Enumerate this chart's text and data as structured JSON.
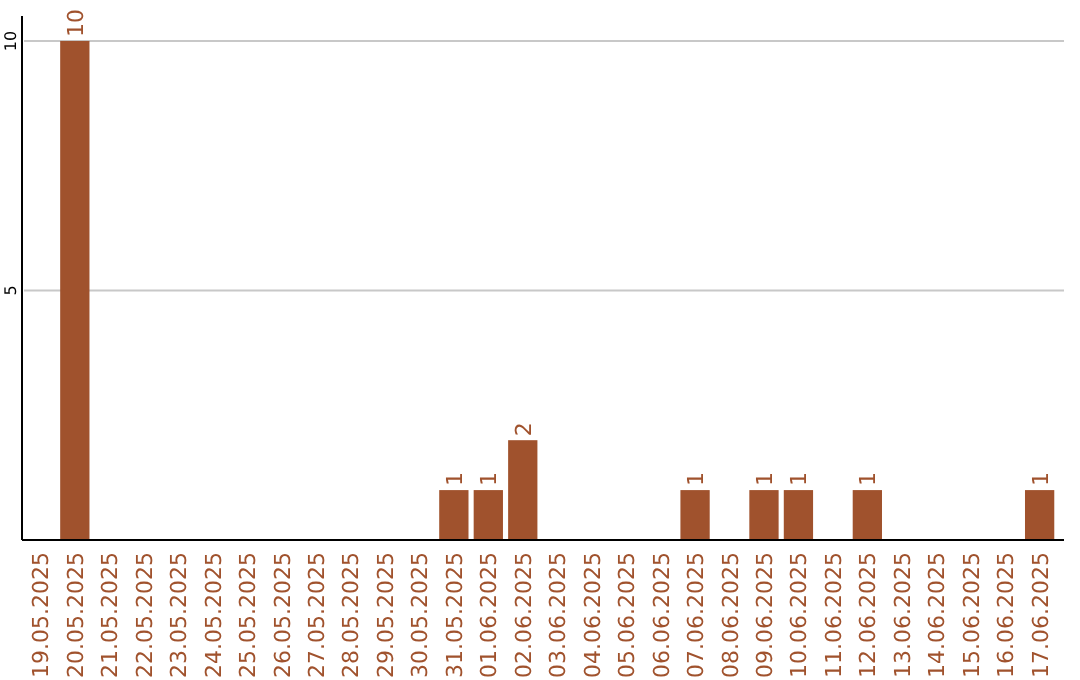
{
  "chart_data": {
    "type": "bar",
    "categories": [
      "19.05.2025",
      "20.05.2025",
      "21.05.2025",
      "22.05.2025",
      "23.05.2025",
      "24.05.2025",
      "25.05.2025",
      "26.05.2025",
      "27.05.2025",
      "28.05.2025",
      "29.05.2025",
      "30.05.2025",
      "31.05.2025",
      "01.06.2025",
      "02.06.2025",
      "03.06.2025",
      "04.06.2025",
      "05.06.2025",
      "06.06.2025",
      "07.06.2025",
      "08.06.2025",
      "09.06.2025",
      "10.06.2025",
      "11.06.2025",
      "12.06.2025",
      "13.06.2025",
      "14.06.2025",
      "15.06.2025",
      "16.06.2025",
      "17.06.2025"
    ],
    "values": [
      0,
      10,
      0,
      0,
      0,
      0,
      0,
      0,
      0,
      0,
      0,
      0,
      1,
      1,
      2,
      0,
      0,
      0,
      0,
      1,
      0,
      1,
      1,
      0,
      1,
      0,
      0,
      0,
      0,
      1
    ],
    "value_labels": [
      null,
      "10",
      null,
      null,
      null,
      null,
      null,
      null,
      null,
      null,
      null,
      null,
      "1",
      "1",
      "2",
      null,
      null,
      null,
      null,
      "1",
      null,
      "1",
      "1",
      null,
      "1",
      null,
      null,
      null,
      null,
      "1"
    ],
    "color": "#a0522d",
    "ylim": [
      0,
      10.5
    ],
    "yticks": [
      5,
      10
    ],
    "grid": "y"
  }
}
